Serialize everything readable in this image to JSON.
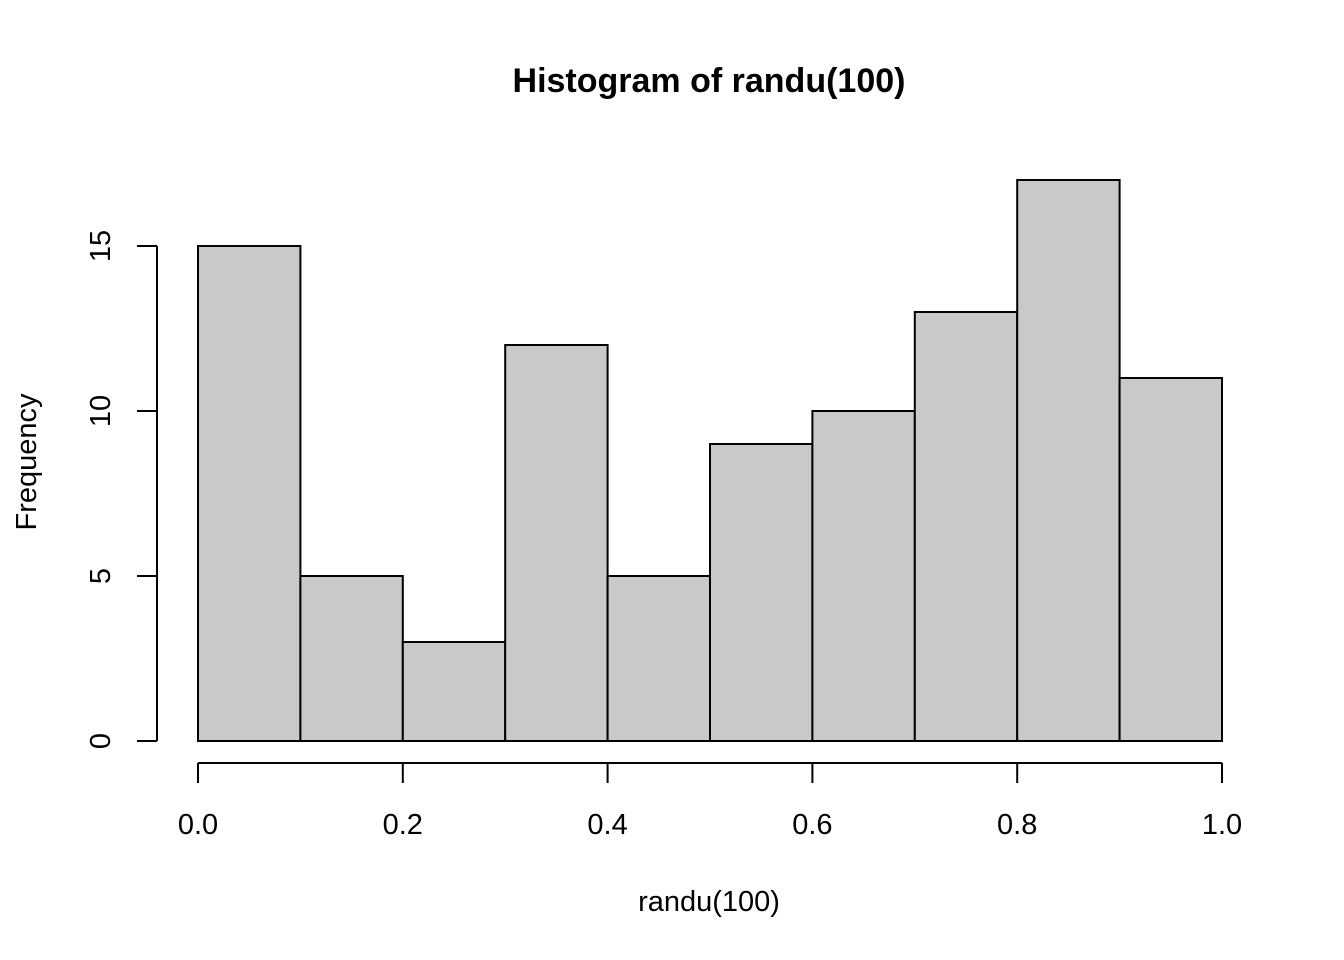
{
  "chart_data": {
    "type": "bar",
    "title": "Histogram of randu(100)",
    "xlabel": "randu(100)",
    "ylabel": "Frequency",
    "bins": [
      {
        "from": 0.0,
        "to": 0.1,
        "count": 15
      },
      {
        "from": 0.1,
        "to": 0.2,
        "count": 5
      },
      {
        "from": 0.2,
        "to": 0.3,
        "count": 3
      },
      {
        "from": 0.3,
        "to": 0.4,
        "count": 12
      },
      {
        "from": 0.4,
        "to": 0.5,
        "count": 5
      },
      {
        "from": 0.5,
        "to": 0.6,
        "count": 9
      },
      {
        "from": 0.6,
        "to": 0.7,
        "count": 10
      },
      {
        "from": 0.7,
        "to": 0.8,
        "count": 13
      },
      {
        "from": 0.8,
        "to": 0.9,
        "count": 17
      },
      {
        "from": 0.9,
        "to": 1.0,
        "count": 11
      }
    ],
    "xlim": [
      0.0,
      1.0
    ],
    "ylim": [
      0,
      17
    ],
    "x_ticks": [
      {
        "value": 0.0,
        "label": "0.0"
      },
      {
        "value": 0.2,
        "label": "0.2"
      },
      {
        "value": 0.4,
        "label": "0.4"
      },
      {
        "value": 0.6,
        "label": "0.6"
      },
      {
        "value": 0.8,
        "label": "0.8"
      },
      {
        "value": 1.0,
        "label": "1.0"
      }
    ],
    "y_ticks": [
      {
        "value": 0,
        "label": "0"
      },
      {
        "value": 5,
        "label": "5"
      },
      {
        "value": 10,
        "label": "10"
      },
      {
        "value": 15,
        "label": "15"
      }
    ],
    "grid": false,
    "legend": "none",
    "bar_fill": "#c9c9c9",
    "bar_stroke": "#000000"
  }
}
